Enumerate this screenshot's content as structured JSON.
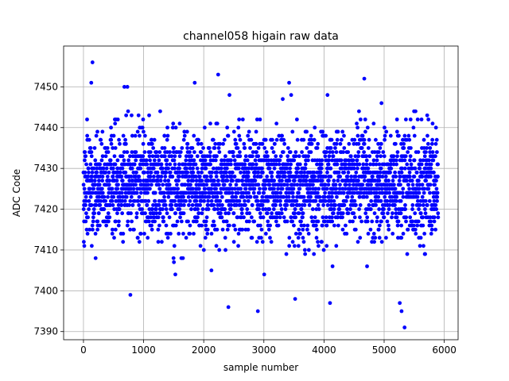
{
  "chart_data": {
    "type": "scatter",
    "title": "channel058 higain raw data",
    "xlabel": "sample number",
    "ylabel": "ADC Code",
    "xlim": [
      -330,
      6230
    ],
    "ylim": [
      7388,
      7460
    ],
    "xticks": [
      0,
      1000,
      2000,
      3000,
      4000,
      5000,
      6000
    ],
    "yticks": [
      7390,
      7400,
      7410,
      7420,
      7430,
      7440,
      7450
    ],
    "grid": true,
    "marker_color": "#0000ff",
    "series": [
      {
        "n_points": 5900,
        "x_range": [
          0,
          5900
        ],
        "baseline": 7426,
        "spread_sd": 6.5,
        "notable_points": [
          {
            "x": 150,
            "y": 7456
          },
          {
            "x": 130,
            "y": 7451
          },
          {
            "x": 680,
            "y": 7450
          },
          {
            "x": 730,
            "y": 7450
          },
          {
            "x": 1850,
            "y": 7451
          },
          {
            "x": 2240,
            "y": 7453
          },
          {
            "x": 3420,
            "y": 7451
          },
          {
            "x": 4670,
            "y": 7452
          },
          {
            "x": 780,
            "y": 7399
          },
          {
            "x": 2410,
            "y": 7396
          },
          {
            "x": 2900,
            "y": 7395
          },
          {
            "x": 3520,
            "y": 7398
          },
          {
            "x": 4100,
            "y": 7397
          },
          {
            "x": 5260,
            "y": 7397
          },
          {
            "x": 5290,
            "y": 7395
          },
          {
            "x": 5340,
            "y": 7391
          }
        ]
      }
    ]
  }
}
